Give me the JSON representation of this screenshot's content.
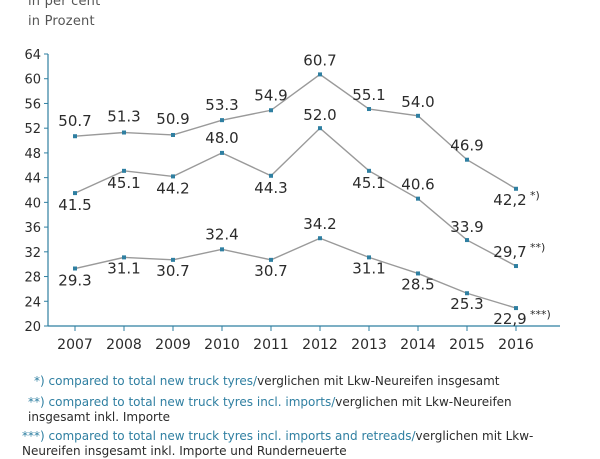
{
  "header": {
    "unit_en": "in per cent",
    "unit_de": "in Prozent"
  },
  "chart_data": {
    "type": "line",
    "title": "",
    "xlabel": "",
    "ylabel": "",
    "x": [
      "2007",
      "2008",
      "2009",
      "2010",
      "2011",
      "2012",
      "2013",
      "2014",
      "2015",
      "2016"
    ],
    "ylim": [
      20,
      64
    ],
    "yticks": [
      "20",
      "24",
      "28",
      "32",
      "36",
      "40",
      "44",
      "48",
      "52",
      "56",
      "60",
      "64"
    ],
    "grid": false,
    "series": [
      {
        "values": [
          50.7,
          51.3,
          50.9,
          53.3,
          54.9,
          60.7,
          55.1,
          54.0,
          46.9,
          42.2
        ],
        "labels": [
          "50.7",
          "51.3",
          "50.9",
          "53.3",
          "54.9",
          "60.7",
          "55.1",
          "54.0",
          "46.9",
          "42,2"
        ],
        "end_marker": "*)"
      },
      {
        "values": [
          41.5,
          45.1,
          44.2,
          48.0,
          44.3,
          52.0,
          45.1,
          40.6,
          33.9,
          29.7
        ],
        "labels": [
          "41.5",
          "45.1",
          "44.2",
          "48.0",
          "44.3",
          "52.0",
          "45.1",
          "40.6",
          "33.9",
          "29,7"
        ],
        "end_marker": "**)"
      },
      {
        "values": [
          29.3,
          31.1,
          30.7,
          32.4,
          30.7,
          34.2,
          31.1,
          28.5,
          25.3,
          22.9
        ],
        "labels": [
          "29.3",
          "31.1",
          "30.7",
          "32.4",
          "30.7",
          "34.2",
          "31.1",
          "28.5",
          "25.3",
          "22,9"
        ],
        "end_marker": "***)"
      }
    ],
    "colors": {
      "line": "#9a9a9a",
      "marker": "#2f7fa1",
      "axis": "#2f7fa1",
      "text": "#2b2b2b"
    }
  },
  "footnotes": [
    {
      "mark": "*)",
      "text_en": "compared to total new truck tyres/",
      "text_de": "verglichen mit Lkw-Neureifen insgesamt"
    },
    {
      "mark": "**)",
      "text_en": "compared to total new truck tyres incl. imports/",
      "text_de": "verglichen mit Lkw-Neureifen insgesamt inkl. Importe"
    },
    {
      "mark": "***)",
      "text_en": "compared to total new truck tyres incl. imports and retreads/",
      "text_de": "verglichen mit Lkw-Neureifen insgesamt inkl. Importe und Runderneuerte"
    }
  ]
}
